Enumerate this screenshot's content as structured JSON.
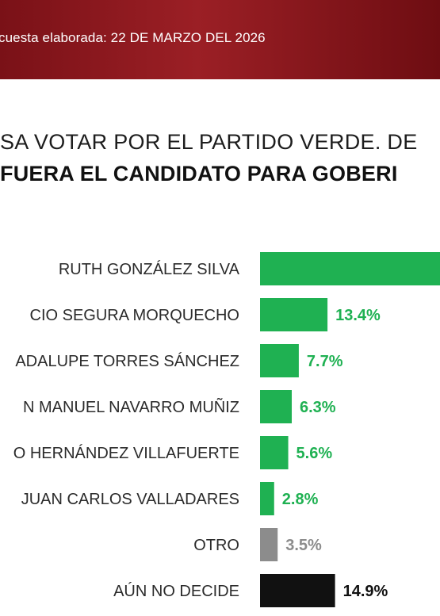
{
  "header": {
    "survey_date": "cuesta elaborada: 22 DE MARZO DEL 2026"
  },
  "question": {
    "line1": "SA VOTAR POR EL PARTIDO VERDE. DE",
    "line2": "FUERA EL CANDIDATO PARA GOBERI"
  },
  "colors": {
    "header_bg": "#8e1a20",
    "green": "#1fb152",
    "gray": "#8c8c8c",
    "black": "#111111"
  },
  "chart_data": {
    "type": "bar",
    "orientation": "horizontal",
    "categories": [
      "RUTH GONZÁLEZ SILVA",
      "CIO SEGURA MORQUECHO",
      "ADALUPE TORRES SÁNCHEZ",
      "N MANUEL NAVARRO MUÑIZ",
      "O HERNÁNDEZ VILLAFUERTE",
      "JUAN CARLOS VALLADARES",
      "OTRO",
      "AÚN NO DECIDE"
    ],
    "values": [
      null,
      13.4,
      7.7,
      6.3,
      5.6,
      2.8,
      3.5,
      14.9
    ],
    "value_labels": [
      "",
      "13.4%",
      "7.7%",
      "6.3%",
      "5.6%",
      "2.8%",
      "3.5%",
      "14.9%"
    ],
    "bar_colors": [
      "#1fb152",
      "#1fb152",
      "#1fb152",
      "#1fb152",
      "#1fb152",
      "#1fb152",
      "#8c8c8c",
      "#111111"
    ],
    "label_colors": [
      "#1fb152",
      "#1fb152",
      "#1fb152",
      "#1fb152",
      "#1fb152",
      "#1fb152",
      "#8c8c8c",
      "#111111"
    ],
    "unit": "%",
    "xlim": [
      0,
      20
    ],
    "bar_start_note": "first bar extends beyond the visible crop; its value is not shown",
    "title": "",
    "xlabel": "",
    "ylabel": "",
    "grid": false,
    "legend": "none"
  }
}
